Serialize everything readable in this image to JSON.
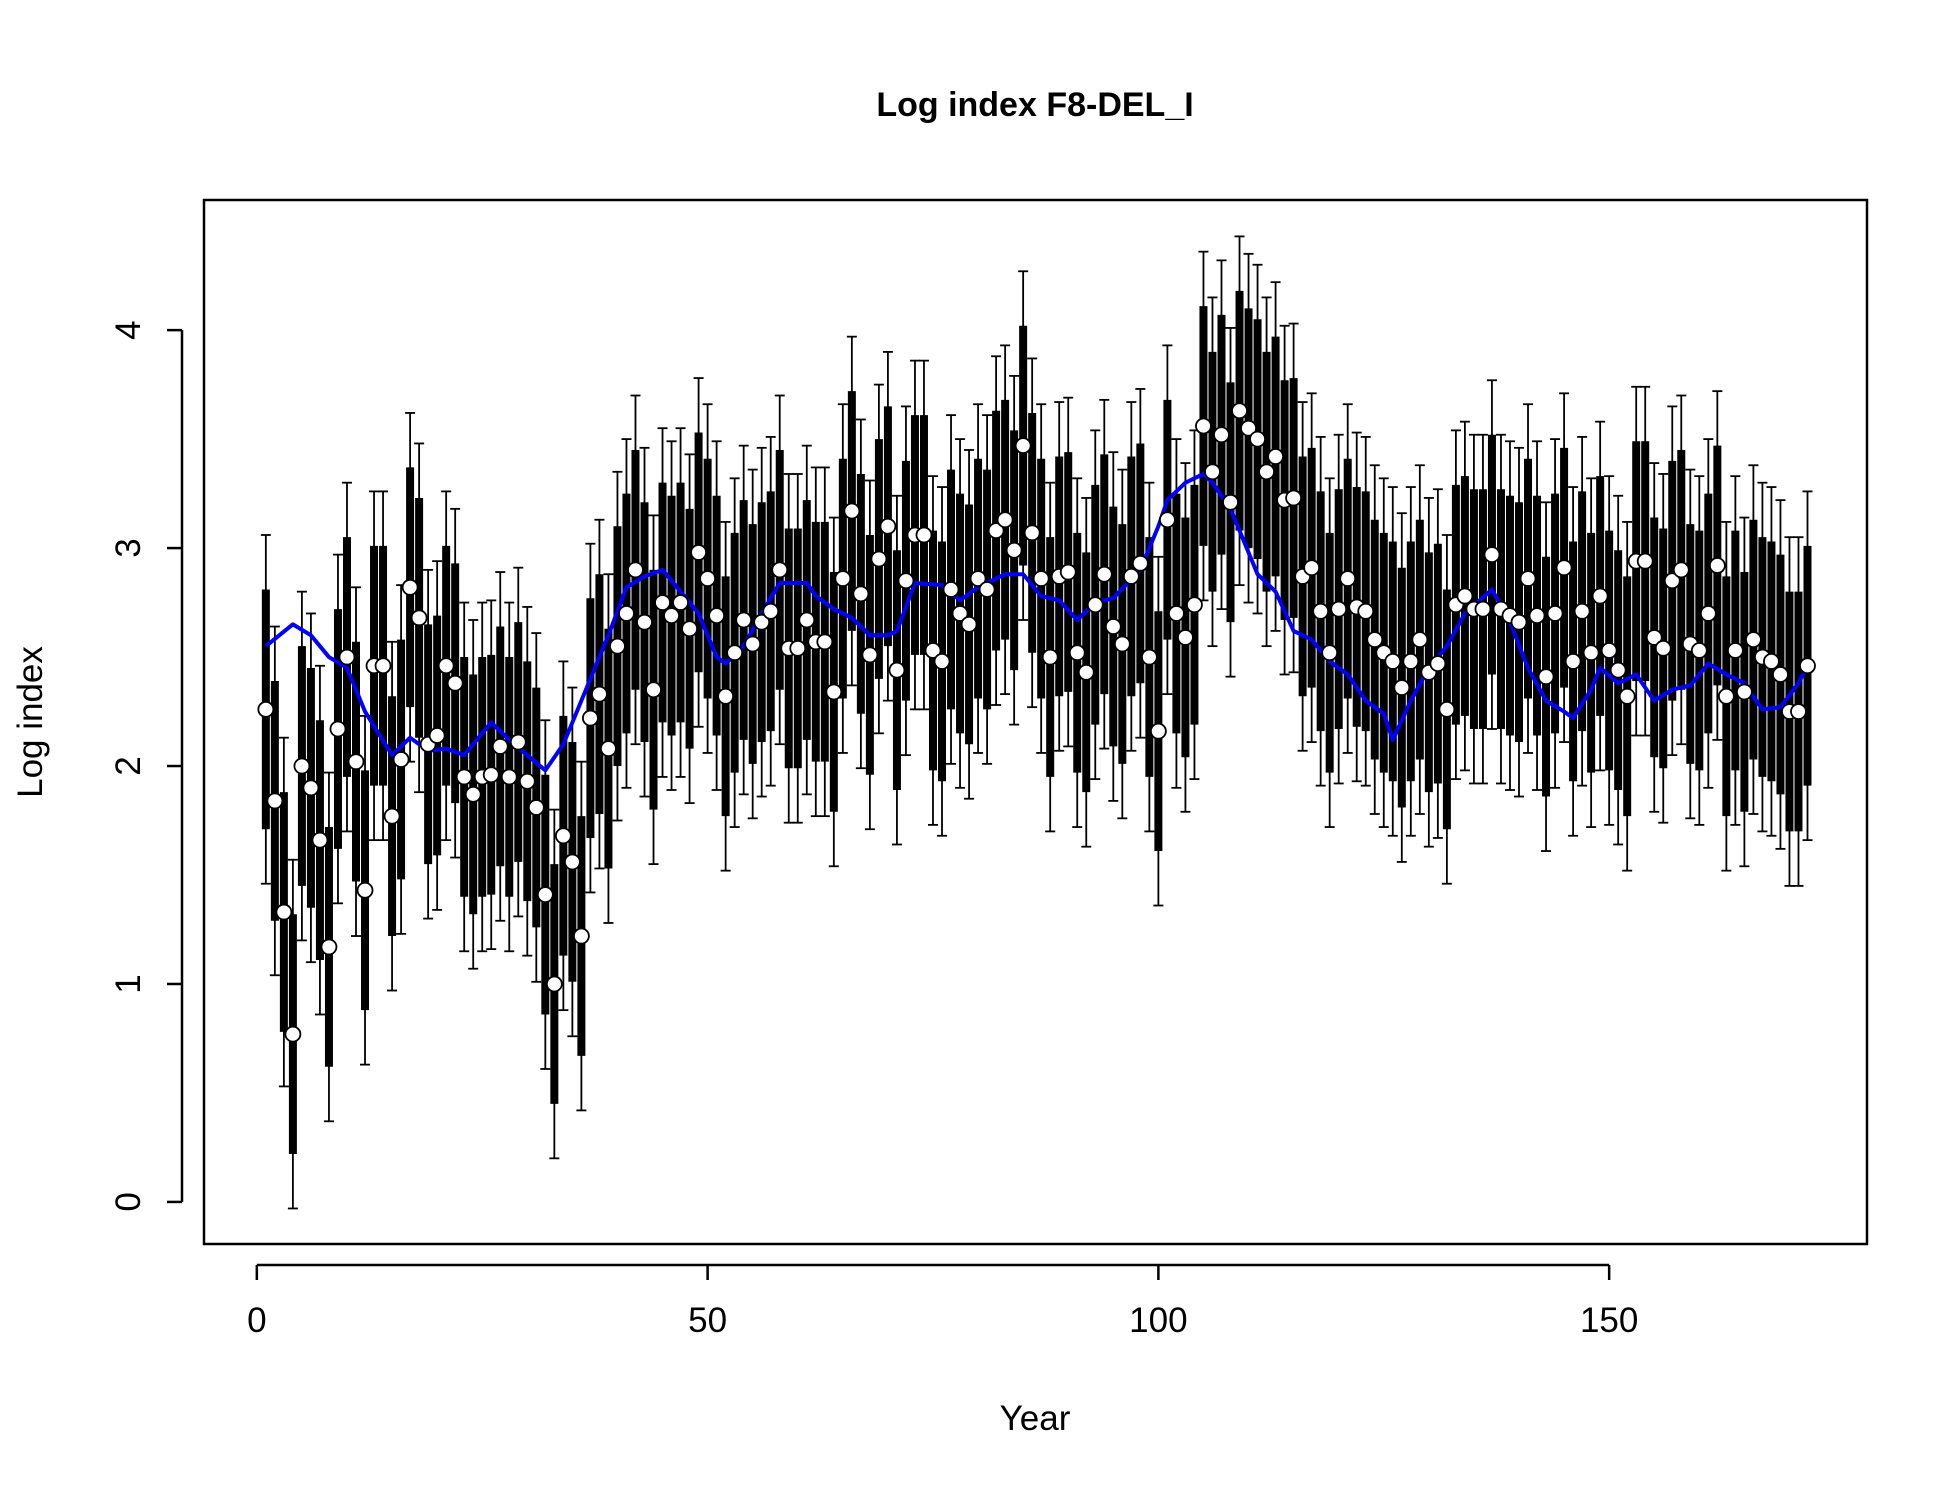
{
  "chart_data": {
    "type": "scatter",
    "title": "Log index F8-DEL_I",
    "x_label": "Year",
    "y_label": "Log index",
    "xlim": [
      -5.86,
      178.6
    ],
    "ylim": [
      -0.193,
      4.597
    ],
    "xticks": [
      0,
      50,
      100,
      150
    ],
    "yticks": [
      0,
      1,
      2,
      3,
      4
    ],
    "series": [
      {
        "kind": "points",
        "color": "#000000",
        "marker_color": "#ffffff",
        "error": 0.8,
        "inner_error": 0.55,
        "x": [
          1,
          2,
          3,
          4,
          5,
          6,
          7,
          8,
          9,
          10,
          11,
          12,
          13,
          14,
          15,
          16,
          17,
          18,
          19,
          20,
          21,
          22,
          23,
          24,
          25,
          26,
          27,
          28,
          29,
          30,
          31,
          32,
          33,
          34,
          35,
          36,
          37,
          38,
          39,
          40,
          41,
          42,
          43,
          44,
          45,
          46,
          47,
          48,
          49,
          50,
          51,
          52,
          53,
          54,
          55,
          56,
          57,
          58,
          59,
          60,
          61,
          62,
          63,
          64,
          65,
          66,
          67,
          68,
          69,
          70,
          71,
          72,
          73,
          74,
          75,
          76,
          77,
          78,
          79,
          80,
          81,
          82,
          83,
          84,
          85,
          86,
          87,
          88,
          89,
          90,
          91,
          92,
          93,
          94,
          95,
          96,
          97,
          98,
          99,
          100,
          101,
          102,
          103,
          104,
          105,
          106,
          107,
          108,
          109,
          110,
          111,
          112,
          113,
          114,
          115,
          116,
          117,
          118,
          119,
          120,
          121,
          122,
          123,
          124,
          125,
          126,
          127,
          128,
          129,
          130,
          131,
          132,
          133,
          134,
          135,
          136,
          137,
          138,
          139,
          140,
          141,
          142,
          143,
          144,
          145,
          146,
          147,
          148,
          149,
          150,
          151,
          152,
          153,
          154,
          155,
          156,
          157,
          158,
          159,
          160,
          161,
          162,
          163,
          164,
          165,
          166,
          167,
          168,
          169,
          170,
          171,
          172
        ],
        "values": [
          2.26,
          1.84,
          1.33,
          0.77,
          2.0,
          1.9,
          1.66,
          1.17,
          2.17,
          2.5,
          2.02,
          1.43,
          2.46,
          2.46,
          1.77,
          2.03,
          2.82,
          2.68,
          2.1,
          2.14,
          2.46,
          2.38,
          1.95,
          1.87,
          1.95,
          1.96,
          2.09,
          1.95,
          2.11,
          1.93,
          1.81,
          1.41,
          1.0,
          1.68,
          1.56,
          1.22,
          2.22,
          2.33,
          2.08,
          2.55,
          2.7,
          2.9,
          2.66,
          2.35,
          2.75,
          2.69,
          2.75,
          2.63,
          2.98,
          2.86,
          2.69,
          2.32,
          2.52,
          2.67,
          2.56,
          2.66,
          2.71,
          2.9,
          2.54,
          2.54,
          2.67,
          2.57,
          2.57,
          2.34,
          2.86,
          3.17,
          2.79,
          2.51,
          2.95,
          3.1,
          2.44,
          2.85,
          3.06,
          3.06,
          2.53,
          2.48,
          2.81,
          2.7,
          2.65,
          2.86,
          2.81,
          3.08,
          3.13,
          2.99,
          3.47,
          3.07,
          2.86,
          2.5,
          2.87,
          2.89,
          2.52,
          2.43,
          2.74,
          2.88,
          2.64,
          2.56,
          2.87,
          2.93,
          2.5,
          2.16,
          3.13,
          2.7,
          2.59,
          2.74,
          3.56,
          3.35,
          3.52,
          3.21,
          3.63,
          3.55,
          3.5,
          3.35,
          3.42,
          3.22,
          3.23,
          2.87,
          2.91,
          2.71,
          2.52,
          2.72,
          2.86,
          2.73,
          2.71,
          2.58,
          2.52,
          2.48,
          2.36,
          2.48,
          2.58,
          2.43,
          2.47,
          2.26,
          2.74,
          2.78,
          2.72,
          2.72,
          2.97,
          2.72,
          2.69,
          2.66,
          2.86,
          2.69,
          2.41,
          2.7,
          2.91,
          2.48,
          2.71,
          2.52,
          2.78,
          2.53,
          2.44,
          2.32,
          2.94,
          2.94,
          2.59,
          2.54,
          2.85,
          2.9,
          2.56,
          2.53,
          2.7,
          2.92,
          2.32,
          2.53,
          2.34,
          2.58,
          2.5,
          2.48,
          2.42,
          2.25,
          2.25,
          2.46
        ]
      },
      {
        "kind": "line",
        "color": "#0000ff",
        "x": [
          1,
          4,
          6,
          8,
          10,
          12,
          15,
          17,
          19,
          21,
          23,
          26,
          28,
          30,
          32,
          34,
          37,
          39,
          41,
          43,
          45,
          47,
          49,
          51,
          52,
          54,
          56,
          58,
          61,
          62,
          64,
          66,
          68,
          70,
          71,
          73,
          76,
          78,
          80,
          83,
          85,
          87,
          89,
          91,
          93,
          95,
          98,
          100,
          101,
          103,
          105,
          106,
          108,
          109,
          111,
          113,
          115,
          117,
          119,
          121,
          123,
          125,
          126,
          128,
          130,
          132,
          134,
          137,
          139,
          141,
          143,
          145,
          146,
          148,
          149,
          151,
          153,
          155,
          157,
          159,
          161,
          163,
          165,
          167,
          169,
          171,
          172
        ],
        "values": [
          2.55,
          2.65,
          2.6,
          2.5,
          2.45,
          2.25,
          2.05,
          2.13,
          2.07,
          2.08,
          2.05,
          2.2,
          2.12,
          2.05,
          1.98,
          2.1,
          2.4,
          2.6,
          2.82,
          2.87,
          2.9,
          2.8,
          2.7,
          2.5,
          2.47,
          2.55,
          2.7,
          2.84,
          2.84,
          2.78,
          2.72,
          2.68,
          2.6,
          2.6,
          2.62,
          2.84,
          2.83,
          2.76,
          2.82,
          2.88,
          2.88,
          2.78,
          2.76,
          2.67,
          2.75,
          2.77,
          2.9,
          3.1,
          3.22,
          3.3,
          3.34,
          3.3,
          3.18,
          3.08,
          2.88,
          2.8,
          2.62,
          2.58,
          2.48,
          2.42,
          2.3,
          2.24,
          2.12,
          2.3,
          2.45,
          2.55,
          2.7,
          2.81,
          2.66,
          2.45,
          2.3,
          2.25,
          2.22,
          2.35,
          2.45,
          2.38,
          2.42,
          2.3,
          2.35,
          2.37,
          2.47,
          2.42,
          2.38,
          2.26,
          2.27,
          2.38,
          2.46
        ]
      }
    ]
  }
}
